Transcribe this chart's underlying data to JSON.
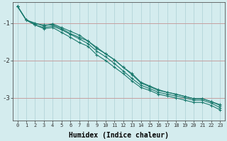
{
  "xlabel": "Humidex (Indice chaleur)",
  "background_color": "#d4ecee",
  "grid_color": "#b8d8dc",
  "line_color": "#1a7a6e",
  "xlim": [
    -0.5,
    23.5
  ],
  "ylim": [
    -3.6,
    -0.45
  ],
  "xticks": [
    0,
    1,
    2,
    3,
    4,
    5,
    6,
    7,
    8,
    9,
    10,
    11,
    12,
    13,
    14,
    15,
    16,
    17,
    18,
    19,
    20,
    21,
    22,
    23
  ],
  "yticks": [
    -3,
    -2,
    -1
  ],
  "series": [
    [
      -0.55,
      -0.92,
      -1.0,
      -1.08,
      -1.02,
      -1.12,
      -1.22,
      -1.32,
      -1.48,
      -1.68,
      -1.82,
      -1.98,
      -2.18,
      -2.38,
      -2.6,
      -2.7,
      -2.8,
      -2.85,
      -2.9,
      -2.96,
      -3.02,
      -3.02,
      -3.1,
      -3.2
    ],
    [
      -0.55,
      -0.92,
      -1.05,
      -1.15,
      -1.12,
      -1.25,
      -1.38,
      -1.52,
      -1.62,
      -1.85,
      -2.0,
      -2.18,
      -2.35,
      -2.55,
      -2.72,
      -2.8,
      -2.9,
      -2.95,
      -3.0,
      -3.06,
      -3.12,
      -3.12,
      -3.2,
      -3.32
    ],
    [
      -0.55,
      -0.92,
      -1.05,
      -1.12,
      -1.08,
      -1.18,
      -1.3,
      -1.42,
      -1.55,
      -1.75,
      -1.9,
      -2.08,
      -2.28,
      -2.48,
      -2.66,
      -2.75,
      -2.85,
      -2.9,
      -2.95,
      -3.0,
      -3.06,
      -3.06,
      -3.14,
      -3.26
    ],
    [
      -0.55,
      -0.92,
      -1.02,
      -1.05,
      -1.05,
      -1.15,
      -1.28,
      -1.38,
      -1.48,
      -1.65,
      -1.82,
      -1.98,
      -2.18,
      -2.35,
      -2.58,
      -2.68,
      -2.78,
      -2.85,
      -2.9,
      -2.96,
      -3.02,
      -3.02,
      -3.1,
      -3.18
    ]
  ]
}
